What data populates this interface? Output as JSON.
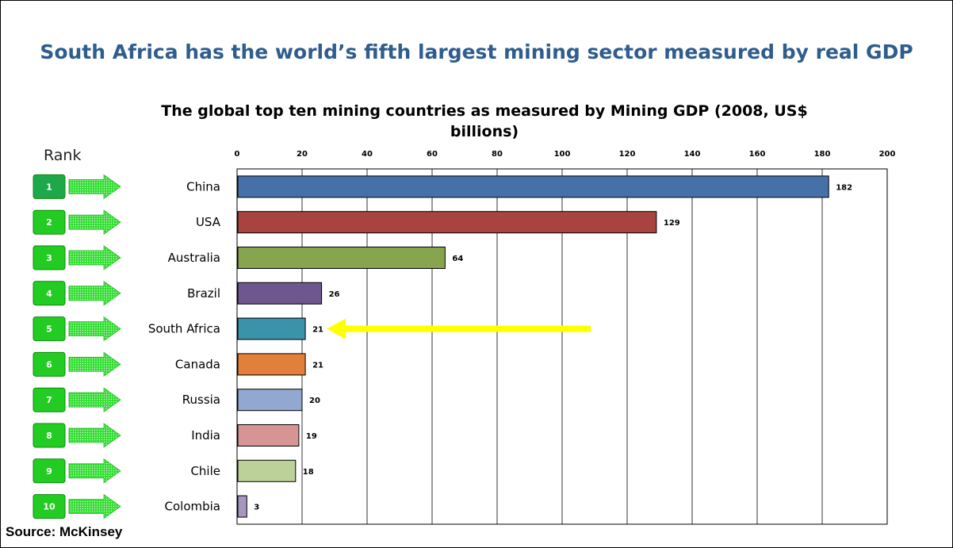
{
  "slide": {
    "title": "South Africa has the world’s fifth largest mining sector measured by real GDP",
    "rank_header": "Rank",
    "source": "Source: McKinsey"
  },
  "chart_data": {
    "type": "bar",
    "orientation": "horizontal",
    "title": "The global top ten mining countries as measured by Mining GDP (2008, US$ billions)",
    "categories": [
      "China",
      "USA",
      "Australia",
      "Brazil",
      "South Africa",
      "Canada",
      "Russia",
      "India",
      "Chile",
      "Colombia"
    ],
    "values": [
      182,
      129,
      64,
      26,
      21,
      21,
      20,
      19,
      18,
      3
    ],
    "ranks": [
      "1",
      "2",
      "3",
      "4",
      "5",
      "6",
      "7",
      "8",
      "9",
      "10"
    ],
    "bar_colors": [
      "#4670a8",
      "#a84340",
      "#87a44e",
      "#6e568f",
      "#3a92ab",
      "#e2803b",
      "#92a8d1",
      "#d69594",
      "#bcd19a",
      "#a597bd"
    ],
    "xlim": [
      0,
      200
    ],
    "xticks": [
      0,
      20,
      40,
      60,
      80,
      100,
      120,
      140,
      160,
      180,
      200
    ],
    "xaxis_position": "top",
    "grid": true,
    "highlight": {
      "category": "South Africa",
      "marker": "yellow arrow",
      "color": "#ffff00"
    },
    "rank_badge_color": "#22cc22"
  }
}
